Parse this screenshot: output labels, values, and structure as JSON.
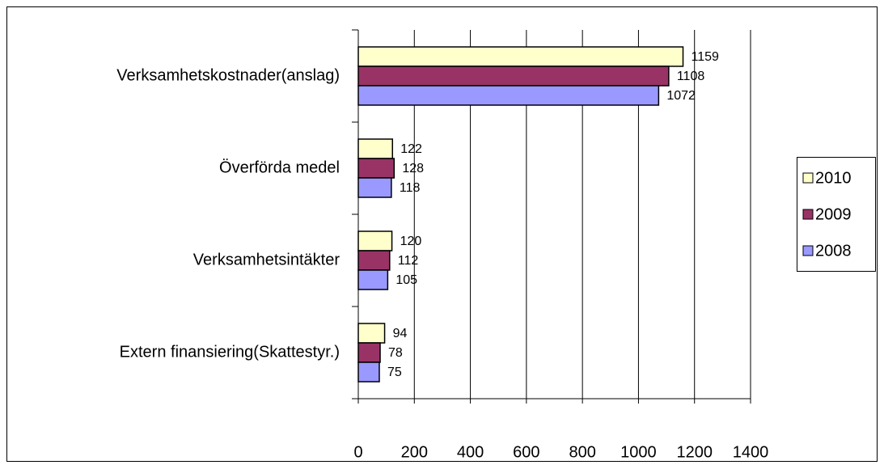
{
  "chart_data": {
    "type": "bar",
    "orientation": "horizontal",
    "categories": [
      "Verksamhetskostnader(anslag)",
      "Överförda medel",
      "Verksamhetsintäkter",
      "Extern finansiering(Skattestyr.)"
    ],
    "series": [
      {
        "name": "2010",
        "color": "#ffffcc",
        "values": [
          1159,
          122,
          120,
          94
        ]
      },
      {
        "name": "2009",
        "color": "#993366",
        "values": [
          1108,
          128,
          112,
          78
        ]
      },
      {
        "name": "2008",
        "color": "#9999ff",
        "values": [
          1072,
          118,
          105,
          75
        ]
      }
    ],
    "xlim": [
      0,
      1400
    ],
    "xticks": [
      0,
      200,
      400,
      600,
      800,
      1000,
      1200,
      1400
    ],
    "grid": true,
    "legend": "right"
  }
}
